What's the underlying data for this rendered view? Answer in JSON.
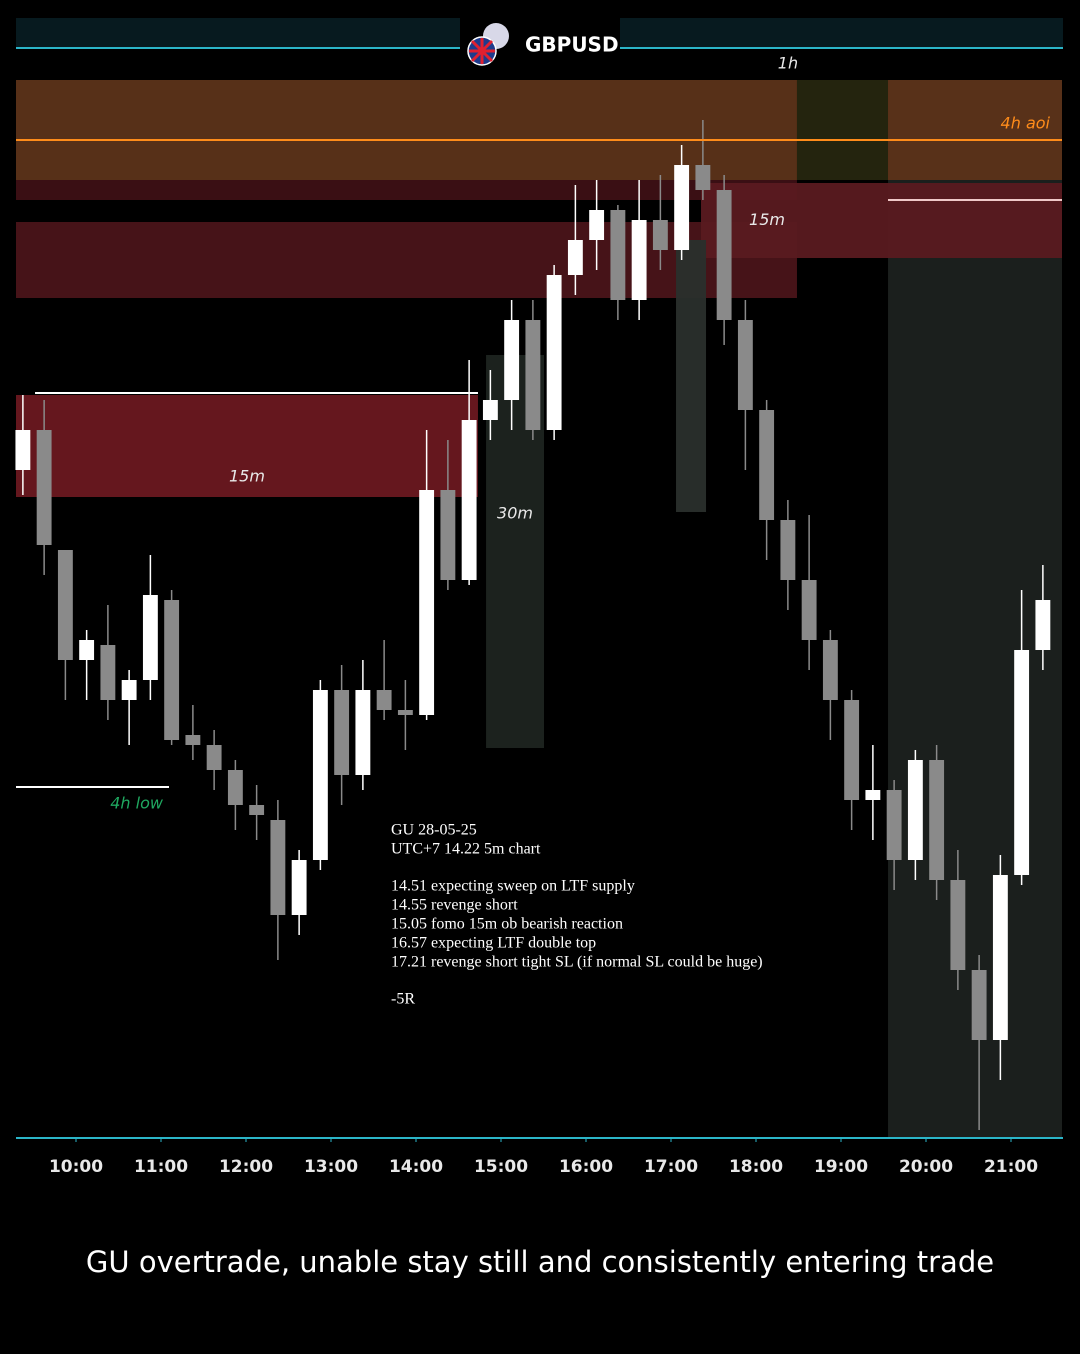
{
  "chart_data": {
    "type": "candlestick",
    "title": "GBPUSD",
    "caption": "GU overtrade, unable stay still and consistently entering trade",
    "up_color": "#ffffff",
    "down_color": "#8a8a8a",
    "xlim": [
      9.294,
      21.6
    ],
    "ylim": [
      1.343,
      1.3539
    ],
    "xticks": [
      {
        "value": 10,
        "label": "10:00"
      },
      {
        "value": 11,
        "label": "11:00"
      },
      {
        "value": 12,
        "label": "12:00"
      },
      {
        "value": 13,
        "label": "13:00"
      },
      {
        "value": 14,
        "label": "14:00"
      },
      {
        "value": 15,
        "label": "15:00"
      },
      {
        "value": 16,
        "label": "16:00"
      },
      {
        "value": 17,
        "label": "17:00"
      },
      {
        "value": 18,
        "label": "18:00"
      },
      {
        "value": 19,
        "label": "19:00"
      },
      {
        "value": 20,
        "label": "20:00"
      },
      {
        "value": 21,
        "label": "21:00"
      }
    ],
    "x": [
      9.375,
      9.625,
      9.875,
      10.125,
      10.375,
      10.625,
      10.875,
      11.125,
      11.375,
      11.625,
      11.875,
      12.125,
      12.375,
      12.625,
      12.875,
      13.125,
      13.375,
      13.625,
      13.875,
      14.125,
      14.375,
      14.625,
      14.875,
      15.125,
      15.375,
      15.625,
      15.875,
      16.125,
      16.375,
      16.625,
      16.875,
      17.125,
      17.375,
      17.625,
      17.875,
      18.125,
      18.375,
      18.625,
      18.875,
      19.125,
      19.375,
      19.625,
      19.875,
      20.125,
      20.375,
      20.625,
      20.875,
      21.125,
      21.375
    ],
    "open": [
      1.34968,
      1.35008,
      1.34888,
      1.34778,
      1.34793,
      1.34738,
      1.34758,
      1.34838,
      1.34703,
      1.34693,
      1.34668,
      1.34633,
      1.34618,
      1.34523,
      1.34578,
      1.34748,
      1.34663,
      1.34748,
      1.34728,
      1.34723,
      1.34948,
      1.34858,
      1.35018,
      1.35038,
      1.35118,
      1.35008,
      1.35163,
      1.35198,
      1.35228,
      1.35138,
      1.35218,
      1.35188,
      1.35273,
      1.35248,
      1.35118,
      1.35028,
      1.34918,
      1.34858,
      1.34798,
      1.34738,
      1.34638,
      1.34648,
      1.34578,
      1.34678,
      1.34558,
      1.34468,
      1.34398,
      1.34563,
      1.34788
    ],
    "high": [
      1.35043,
      1.35038,
      1.34888,
      1.34808,
      1.34833,
      1.34768,
      1.34883,
      1.34848,
      1.34733,
      1.34708,
      1.34678,
      1.34653,
      1.34638,
      1.34588,
      1.34758,
      1.34773,
      1.34778,
      1.34798,
      1.34758,
      1.35008,
      1.34998,
      1.35078,
      1.35068,
      1.35138,
      1.35138,
      1.35173,
      1.35253,
      1.35258,
      1.35233,
      1.35258,
      1.35263,
      1.35293,
      1.35318,
      1.35263,
      1.35138,
      1.35038,
      1.34938,
      1.34923,
      1.34808,
      1.34748,
      1.34693,
      1.34658,
      1.34688,
      1.34693,
      1.34588,
      1.34483,
      1.34583,
      1.34848,
      1.34873
    ],
    "low": [
      1.34943,
      1.34863,
      1.34738,
      1.34738,
      1.34718,
      1.34693,
      1.34738,
      1.34693,
      1.34678,
      1.34648,
      1.34608,
      1.34598,
      1.34478,
      1.34503,
      1.34568,
      1.34633,
      1.34648,
      1.34718,
      1.34688,
      1.34718,
      1.34848,
      1.34853,
      1.34998,
      1.35008,
      1.34998,
      1.34998,
      1.35143,
      1.35168,
      1.35118,
      1.35118,
      1.35168,
      1.35178,
      1.35238,
      1.35093,
      1.34968,
      1.34878,
      1.34828,
      1.34768,
      1.34698,
      1.34608,
      1.34598,
      1.34548,
      1.34558,
      1.34538,
      1.34448,
      1.34308,
      1.34358,
      1.34553,
      1.34768
    ],
    "close": [
      1.35008,
      1.34893,
      1.34778,
      1.34798,
      1.34738,
      1.34758,
      1.34843,
      1.34698,
      1.34693,
      1.34668,
      1.34633,
      1.34623,
      1.34523,
      1.34578,
      1.34748,
      1.34663,
      1.34748,
      1.34728,
      1.34723,
      1.34948,
      1.34858,
      1.35018,
      1.35038,
      1.35118,
      1.35008,
      1.35163,
      1.35198,
      1.35228,
      1.35138,
      1.35218,
      1.35188,
      1.35273,
      1.35248,
      1.35118,
      1.35028,
      1.34918,
      1.34858,
      1.34798,
      1.34738,
      1.34638,
      1.34648,
      1.34578,
      1.34678,
      1.34558,
      1.34468,
      1.34398,
      1.34563,
      1.34788,
      1.34838
    ],
    "zones": [
      {
        "x": [
          19.553,
          21.6
        ],
        "y": [
          1.343,
          1.35358
        ],
        "color": "#1c211f"
      },
      {
        "label": "1h",
        "x": [
          9.294,
          18.482
        ],
        "y": [
          1.35258,
          1.35358
        ],
        "color": "#5c3319"
      },
      {
        "x": [
          18.482,
          19.553
        ],
        "y": [
          1.35258,
          1.35358
        ],
        "color": "#26260f"
      },
      {
        "x": [
          19.553,
          21.6
        ],
        "y": [
          1.35258,
          1.35358
        ],
        "color": "#5c3319"
      },
      {
        "x": [
          9.294,
          18.482
        ],
        "y": [
          1.35238,
          1.35258
        ],
        "color": "#3d1015"
      },
      {
        "x": [
          9.294,
          18.482
        ],
        "y": [
          1.3514,
          1.35216
        ],
        "color": "#4a1419"
      },
      {
        "label": "15m",
        "x": [
          17.353,
          21.6
        ],
        "y": [
          1.3518,
          1.35255
        ],
        "color": "#5a1a20"
      },
      {
        "label": "15m",
        "x": [
          9.294,
          14.729
        ],
        "y": [
          1.34941,
          1.35043
        ],
        "color": "#6a1820"
      },
      {
        "label": "30m",
        "x": [
          14.824,
          15.506
        ],
        "y": [
          1.3469,
          1.35083
        ],
        "color": "#1e2420"
      },
      {
        "x": [
          17.059,
          17.412
        ],
        "y": [
          1.34926,
          1.35198
        ],
        "color": "#2a2f2c"
      }
    ],
    "levels": [
      {
        "label": "4h aoi",
        "value": 1.35298,
        "x": [
          9.294,
          21.6
        ],
        "color": "#ff8c1a"
      },
      {
        "label": "4h low",
        "value": 1.34651,
        "x": [
          9.294,
          11.094
        ],
        "color": "#ffffff",
        "label_color": "#1fa860"
      },
      {
        "value": 1.35045,
        "x": [
          9.518,
          14.729
        ],
        "color": "#ffffff"
      },
      {
        "value": 1.35238,
        "x": [
          19.553,
          21.6
        ],
        "color": "#f0c8c8"
      }
    ],
    "notes": {
      "header": [
        "GU 28-05-25",
        "UTC+7 14.22 5m chart"
      ],
      "items": [
        "14.51 expecting sweep on LTF supply",
        "14.55 revenge short",
        "15.05 fomo 15m ob bearish reaction",
        "16.57 expecting LTF double top",
        "17.21 revenge short tight SL (if normal SL could be huge)"
      ],
      "result": "-5R"
    }
  }
}
